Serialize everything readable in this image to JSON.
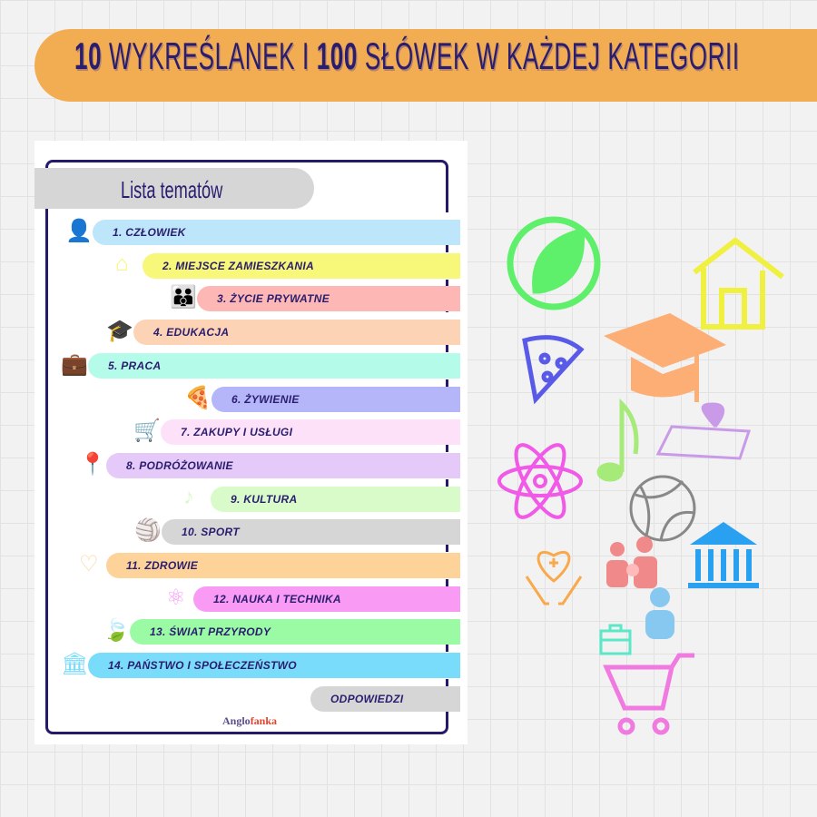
{
  "header": {
    "title_num1": "10",
    "title_part1": " WYKREŚLANEK I ",
    "title_num2": "100",
    "title_part2": " SŁÓWEK W KAŻDEJ KATEGORII",
    "color": "#f2ad52"
  },
  "list": {
    "title": "Lista tematów",
    "topics": [
      {
        "label": "1. CZŁOWIEK",
        "color": "#bde6fb",
        "icon": "person-icon"
      },
      {
        "label": "2. MIEJSCE ZAMIESZKANIA",
        "color": "#f7f77a",
        "icon": "house-icon"
      },
      {
        "label": "3. ŻYCIE PRYWATNE",
        "color": "#fdb8b6",
        "icon": "family-icon"
      },
      {
        "label": "4. EDUKACJA",
        "color": "#fdd3b5",
        "icon": "graduation-cap-icon"
      },
      {
        "label": "5. PRACA",
        "color": "#b5fbea",
        "icon": "briefcase-icon"
      },
      {
        "label": "6. ŻYWIENIE",
        "color": "#b5b5f9",
        "icon": "pizza-icon"
      },
      {
        "label": "7. ZAKUPY I USŁUGI",
        "color": "#fde1f8",
        "icon": "cart-icon"
      },
      {
        "label": "8. PODRÓŻOWANIE",
        "color": "#e4c9f9",
        "icon": "map-icon"
      },
      {
        "label": "9. KULTURA",
        "color": "#d8fbc9",
        "icon": "music-note-icon"
      },
      {
        "label": "10. SPORT",
        "color": "#d6d6d6",
        "icon": "volleyball-icon"
      },
      {
        "label": "11. ZDROWIE",
        "color": "#fdd39a",
        "icon": "health-hands-icon"
      },
      {
        "label": "12. NAUKA I TECHNIKA",
        "color": "#f99af5",
        "icon": "atom-icon"
      },
      {
        "label": "13. ŚWIAT PRZYRODY",
        "color": "#9afba4",
        "icon": "leaf-icon"
      },
      {
        "label": "14. PAŃSTWO I SPOŁECZEŃSTWO",
        "color": "#7adcfb",
        "icon": "government-building-icon"
      }
    ],
    "answers": "ODPOWIEDZI"
  },
  "brand": {
    "part1": "Anglo",
    "part2": "fanka"
  }
}
